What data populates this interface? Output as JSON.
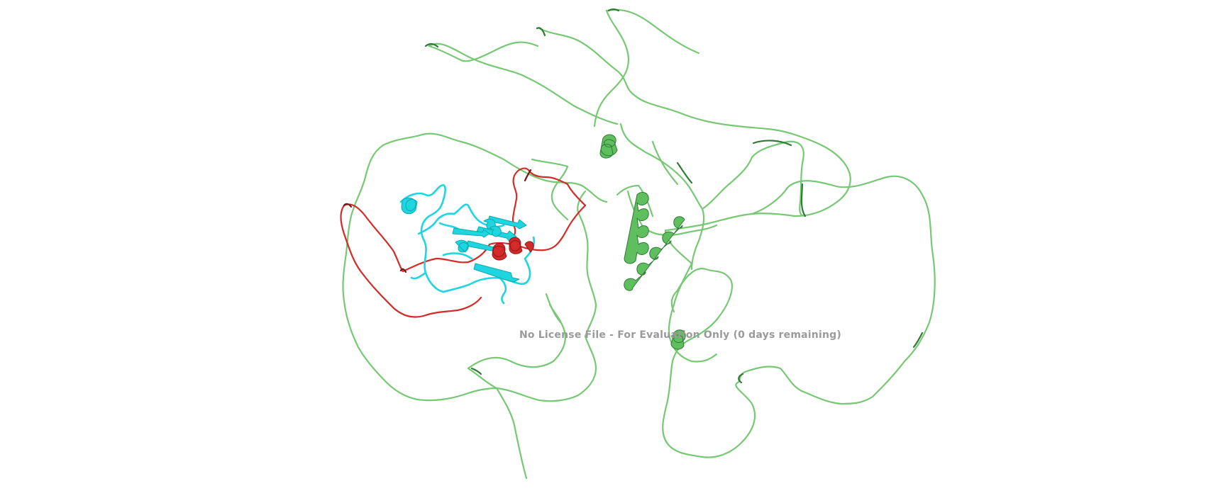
{
  "watermark": {
    "text": "No License File - For Evaluation Only (0 days remaining)"
  },
  "colors": {
    "background": "#ffffff",
    "coil_green": "#77c875",
    "coil_green_dark": "#2f7a35",
    "helix_green": "#5fbf5f",
    "domain_cyan": "#1fd6e0",
    "domain_red": "#d42a2a",
    "watermark": "#9a9a9a"
  }
}
